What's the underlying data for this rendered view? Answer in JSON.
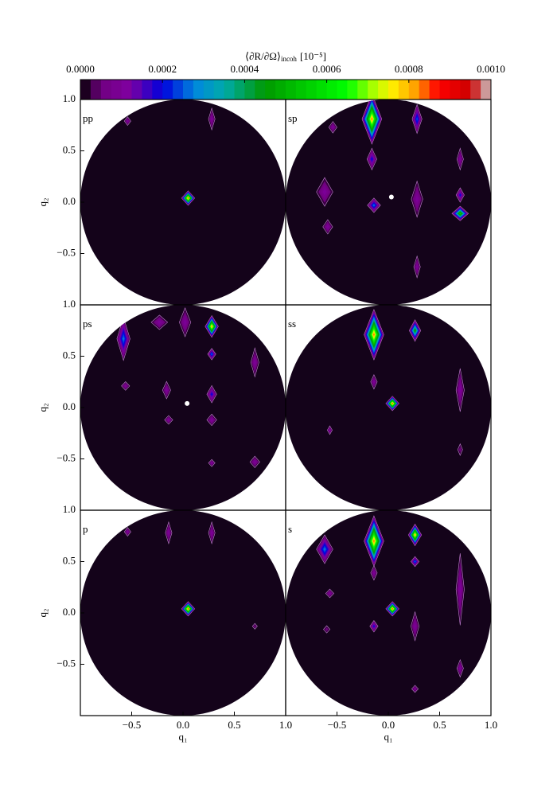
{
  "colorbar": {
    "label_main": "⟨∂R/∂Ω⟩",
    "label_sub": "incoh",
    "label_unit": "[10⁻⁵]",
    "lim": [
      0,
      0.001
    ],
    "ticks": [
      {
        "value": 0,
        "label": "0.0000"
      },
      {
        "value": 0.0002,
        "label": "0.0002"
      },
      {
        "value": 0.0004,
        "label": "0.0004"
      },
      {
        "value": 0.0006,
        "label": "0.0006"
      },
      {
        "value": 0.0008,
        "label": "0.0008"
      },
      {
        "value": 0.001,
        "label": "0.0010"
      }
    ]
  },
  "chart_data": [
    {
      "type": "contour",
      "label": "pp",
      "xlim": [
        -1,
        1
      ],
      "ylim": [
        -1,
        1
      ],
      "ylabel": "q₂",
      "yticks": [
        {
          "value": 1,
          "label": "1.0"
        },
        0.5,
        {
          "value": 0,
          "label": "0.0"
        },
        {
          "value": -0.5,
          "label": "−0.5"
        }
      ],
      "spots": [
        {
          "x": 0.05,
          "y": 0.04,
          "value": 0.0009,
          "w": 0.08,
          "h": 0.1
        },
        {
          "x": -0.54,
          "y": 0.79,
          "value": 0.0001,
          "w": 0.04,
          "h": 0.06
        },
        {
          "x": 0.28,
          "y": 0.81,
          "value": 0.0001,
          "w": 0.04,
          "h": 0.15
        }
      ]
    },
    {
      "type": "contour",
      "label": "sp",
      "xlim": [
        -1,
        1
      ],
      "ylim": [
        -1,
        1
      ],
      "marker": {
        "x": 0.03,
        "y": 0.05
      },
      "spots": [
        {
          "x": -0.16,
          "y": 0.81,
          "value": 0.00085,
          "w": 0.12,
          "h": 0.35
        },
        {
          "x": -0.16,
          "y": 0.42,
          "value": 0.0002,
          "w": 0.06,
          "h": 0.15
        },
        {
          "x": 0.28,
          "y": 0.81,
          "value": 0.00025,
          "w": 0.06,
          "h": 0.2
        },
        {
          "x": 0.28,
          "y": 0.03,
          "value": 0.0001,
          "w": 0.07,
          "h": 0.25
        },
        {
          "x": 0.7,
          "y": -0.11,
          "value": 0.0006,
          "w": 0.1,
          "h": 0.1
        },
        {
          "x": 0.7,
          "y": 0.07,
          "value": 0.0002,
          "w": 0.05,
          "h": 0.1
        },
        {
          "x": 0.7,
          "y": 0.42,
          "value": 0.0001,
          "w": 0.04,
          "h": 0.15
        },
        {
          "x": -0.14,
          "y": -0.03,
          "value": 0.0003,
          "w": 0.08,
          "h": 0.1
        },
        {
          "x": -0.54,
          "y": 0.73,
          "value": 0.0001,
          "w": 0.05,
          "h": 0.08
        },
        {
          "x": -0.62,
          "y": 0.1,
          "value": 0.0001,
          "w": 0.1,
          "h": 0.2
        },
        {
          "x": -0.59,
          "y": -0.24,
          "value": 0.0001,
          "w": 0.06,
          "h": 0.1
        },
        {
          "x": 0.28,
          "y": -0.63,
          "value": 0.0001,
          "w": 0.04,
          "h": 0.15
        }
      ]
    },
    {
      "type": "contour",
      "label": "ps",
      "xlim": [
        -1,
        1
      ],
      "ylim": [
        -1,
        1
      ],
      "ylabel": "q₂",
      "yticks": [
        {
          "value": 1,
          "label": "1.0"
        },
        0.5,
        {
          "value": 0,
          "label": "0.0"
        },
        {
          "value": -0.5,
          "label": "−0.5"
        }
      ],
      "marker": {
        "x": 0.04,
        "y": 0.04
      },
      "spots": [
        {
          "x": -0.58,
          "y": 0.67,
          "value": 0.0003,
          "w": 0.08,
          "h": 0.3
        },
        {
          "x": 0.28,
          "y": 0.79,
          "value": 0.00085,
          "w": 0.08,
          "h": 0.15
        },
        {
          "x": 0.28,
          "y": 0.52,
          "value": 0.0003,
          "w": 0.05,
          "h": 0.08
        },
        {
          "x": 0.02,
          "y": 0.83,
          "value": 0.0001,
          "w": 0.07,
          "h": 0.2
        },
        {
          "x": -0.23,
          "y": 0.83,
          "value": 0.0001,
          "w": 0.1,
          "h": 0.1
        },
        {
          "x": 0.7,
          "y": 0.44,
          "value": 0.0001,
          "w": 0.05,
          "h": 0.2
        },
        {
          "x": 0.28,
          "y": 0.13,
          "value": 0.0002,
          "w": 0.06,
          "h": 0.12
        },
        {
          "x": -0.16,
          "y": 0.17,
          "value": 0.0001,
          "w": 0.05,
          "h": 0.12
        },
        {
          "x": 0.28,
          "y": -0.12,
          "value": 0.00012,
          "w": 0.06,
          "h": 0.08
        },
        {
          "x": -0.14,
          "y": -0.12,
          "value": 0.0001,
          "w": 0.05,
          "h": 0.06
        },
        {
          "x": -0.56,
          "y": 0.21,
          "value": 0.0001,
          "w": 0.05,
          "h": 0.06
        },
        {
          "x": 0.28,
          "y": -0.54,
          "value": 0.0001,
          "w": 0.04,
          "h": 0.05
        },
        {
          "x": 0.7,
          "y": -0.53,
          "value": 0.00012,
          "w": 0.06,
          "h": 0.08
        }
      ]
    },
    {
      "type": "contour",
      "label": "ss",
      "xlim": [
        -1,
        1
      ],
      "ylim": [
        -1,
        1
      ],
      "spots": [
        {
          "x": -0.14,
          "y": 0.71,
          "value": 0.00085,
          "w": 0.12,
          "h": 0.35
        },
        {
          "x": 0.26,
          "y": 0.75,
          "value": 0.0005,
          "w": 0.07,
          "h": 0.15
        },
        {
          "x": 0.04,
          "y": 0.04,
          "value": 0.0009,
          "w": 0.08,
          "h": 0.1
        },
        {
          "x": 0.7,
          "y": 0.17,
          "value": 0.0001,
          "w": 0.05,
          "h": 0.3
        },
        {
          "x": -0.14,
          "y": 0.25,
          "value": 0.0001,
          "w": 0.04,
          "h": 0.1
        },
        {
          "x": -0.57,
          "y": -0.22,
          "value": 0.0001,
          "w": 0.03,
          "h": 0.06
        },
        {
          "x": 0.7,
          "y": -0.41,
          "value": 5e-05,
          "w": 0.03,
          "h": 0.08
        }
      ]
    },
    {
      "type": "contour",
      "label": "p",
      "xlim": [
        -1,
        1
      ],
      "ylim": [
        -1,
        1
      ],
      "xlabel": "q₁",
      "ylabel": "q₂",
      "xticks": [
        {
          "value": -0.5,
          "label": "−0.5"
        },
        {
          "value": 0,
          "label": "0.0"
        },
        0.5,
        {
          "value": 1,
          "label": "1.0"
        }
      ],
      "yticks": [
        {
          "value": 1,
          "label": "1.0"
        },
        0.5,
        {
          "value": 0,
          "label": "0.0"
        },
        {
          "value": -0.5,
          "label": "−0.5"
        }
      ],
      "spots": [
        {
          "x": 0.05,
          "y": 0.04,
          "value": 0.0009,
          "w": 0.08,
          "h": 0.1
        },
        {
          "x": -0.54,
          "y": 0.79,
          "value": 0.0001,
          "w": 0.04,
          "h": 0.06
        },
        {
          "x": -0.14,
          "y": 0.78,
          "value": 0.0001,
          "w": 0.04,
          "h": 0.15
        },
        {
          "x": 0.28,
          "y": 0.78,
          "value": 0.0001,
          "w": 0.04,
          "h": 0.15
        },
        {
          "x": 0.7,
          "y": -0.13,
          "value": 5e-05,
          "w": 0.03,
          "h": 0.04
        }
      ]
    },
    {
      "type": "contour",
      "label": "s",
      "xlim": [
        -1,
        1
      ],
      "ylim": [
        -1,
        1
      ],
      "xlabel": "q₁",
      "xticks": [
        {
          "value": -0.5,
          "label": "−0.5"
        },
        {
          "value": 0,
          "label": "0.0"
        },
        0.5,
        {
          "value": 1,
          "label": "1.0"
        }
      ],
      "spots": [
        {
          "x": -0.14,
          "y": 0.7,
          "value": 0.00085,
          "w": 0.12,
          "h": 0.35
        },
        {
          "x": 0.26,
          "y": 0.76,
          "value": 0.00085,
          "w": 0.08,
          "h": 0.15
        },
        {
          "x": -0.62,
          "y": 0.62,
          "value": 0.0003,
          "w": 0.1,
          "h": 0.2
        },
        {
          "x": 0.04,
          "y": 0.04,
          "value": 0.0009,
          "w": 0.08,
          "h": 0.1
        },
        {
          "x": 0.26,
          "y": 0.5,
          "value": 0.0003,
          "w": 0.05,
          "h": 0.07
        },
        {
          "x": 0.7,
          "y": 0.23,
          "value": 0.0001,
          "w": 0.05,
          "h": 0.5
        },
        {
          "x": -0.14,
          "y": 0.39,
          "value": 0.0001,
          "w": 0.04,
          "h": 0.1
        },
        {
          "x": -0.14,
          "y": -0.13,
          "value": 0.0002,
          "w": 0.05,
          "h": 0.08
        },
        {
          "x": 0.26,
          "y": -0.13,
          "value": 0.0001,
          "w": 0.05,
          "h": 0.2
        },
        {
          "x": -0.57,
          "y": 0.19,
          "value": 0.0001,
          "w": 0.05,
          "h": 0.06
        },
        {
          "x": 0.7,
          "y": -0.54,
          "value": 0.0001,
          "w": 0.04,
          "h": 0.12
        },
        {
          "x": 0.26,
          "y": -0.74,
          "value": 0.0001,
          "w": 0.04,
          "h": 0.05
        },
        {
          "x": -0.6,
          "y": -0.16,
          "value": 5e-05,
          "w": 0.04,
          "h": 0.05
        }
      ]
    }
  ]
}
